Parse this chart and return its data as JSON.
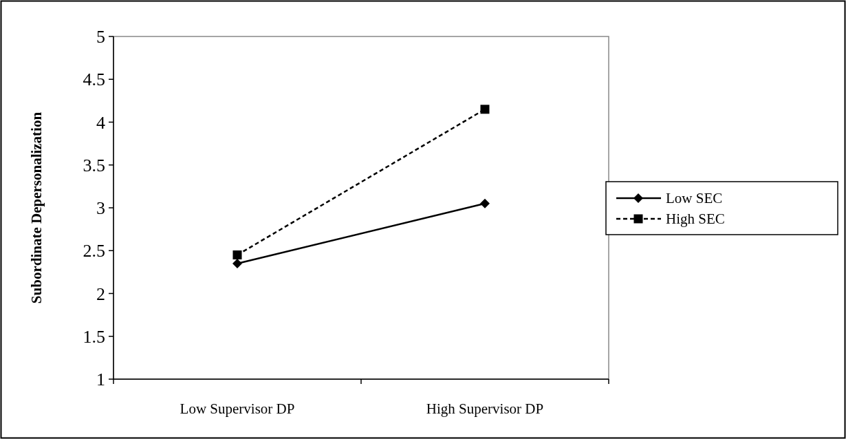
{
  "chart_data": {
    "type": "line",
    "ylabel": "Subordinate Depersonalization",
    "categories": [
      "Low Supervisor DP",
      "High Supervisor DP"
    ],
    "series": [
      {
        "name": "Low SEC",
        "color": "#000000",
        "values": [
          2.35,
          3.05
        ],
        "marker": "diamond",
        "line_style": "solid"
      },
      {
        "name": "High SEC",
        "color": "#000000",
        "values": [
          2.45,
          4.15
        ],
        "marker": "square",
        "line_style": "dashed"
      }
    ],
    "ylim": [
      1,
      5
    ],
    "yticks": [
      1,
      1.5,
      2,
      2.5,
      3,
      3.5,
      4,
      4.5,
      5
    ],
    "grid": false,
    "legend": "right"
  }
}
